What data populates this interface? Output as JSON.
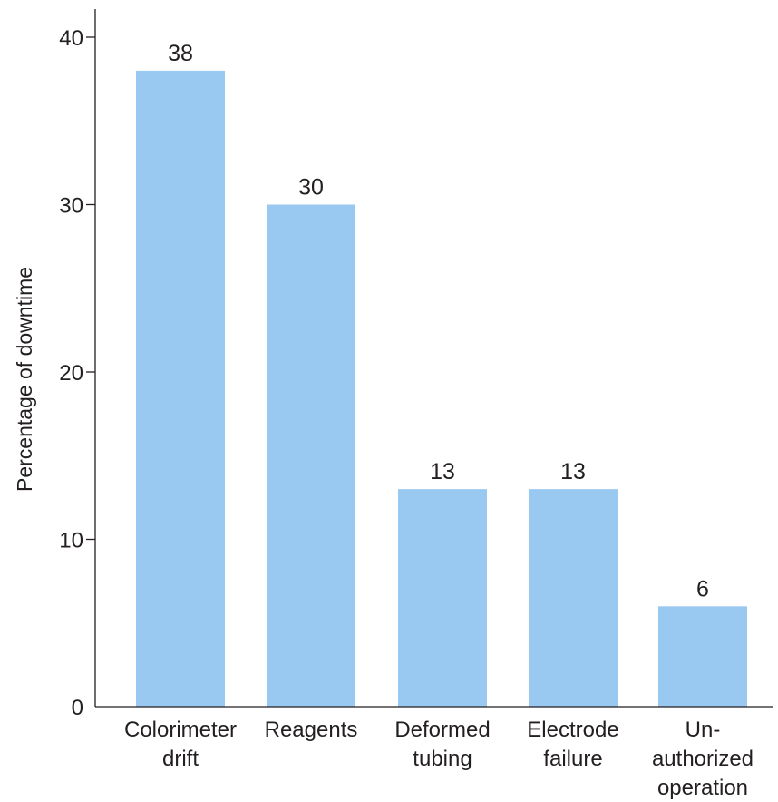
{
  "chart_data": {
    "type": "bar",
    "categories": [
      [
        "Colorimeter",
        "drift"
      ],
      [
        "Reagents"
      ],
      [
        "Deformed",
        "tubing"
      ],
      [
        "Electrode",
        "failure"
      ],
      [
        "Un-",
        "authorized",
        "operation"
      ]
    ],
    "values": [
      38,
      30,
      13,
      13,
      6
    ],
    "data_labels": [
      "38",
      "30",
      "13",
      "13",
      "6"
    ],
    "title": "",
    "xlabel": "",
    "ylabel": "Percentage of downtime",
    "ylim": [
      0,
      40
    ],
    "yticks": [
      0,
      10,
      20,
      30,
      40
    ],
    "grid": false,
    "legend": "none",
    "bar_color": "#99c8f1",
    "axis_color": "#231f20"
  }
}
